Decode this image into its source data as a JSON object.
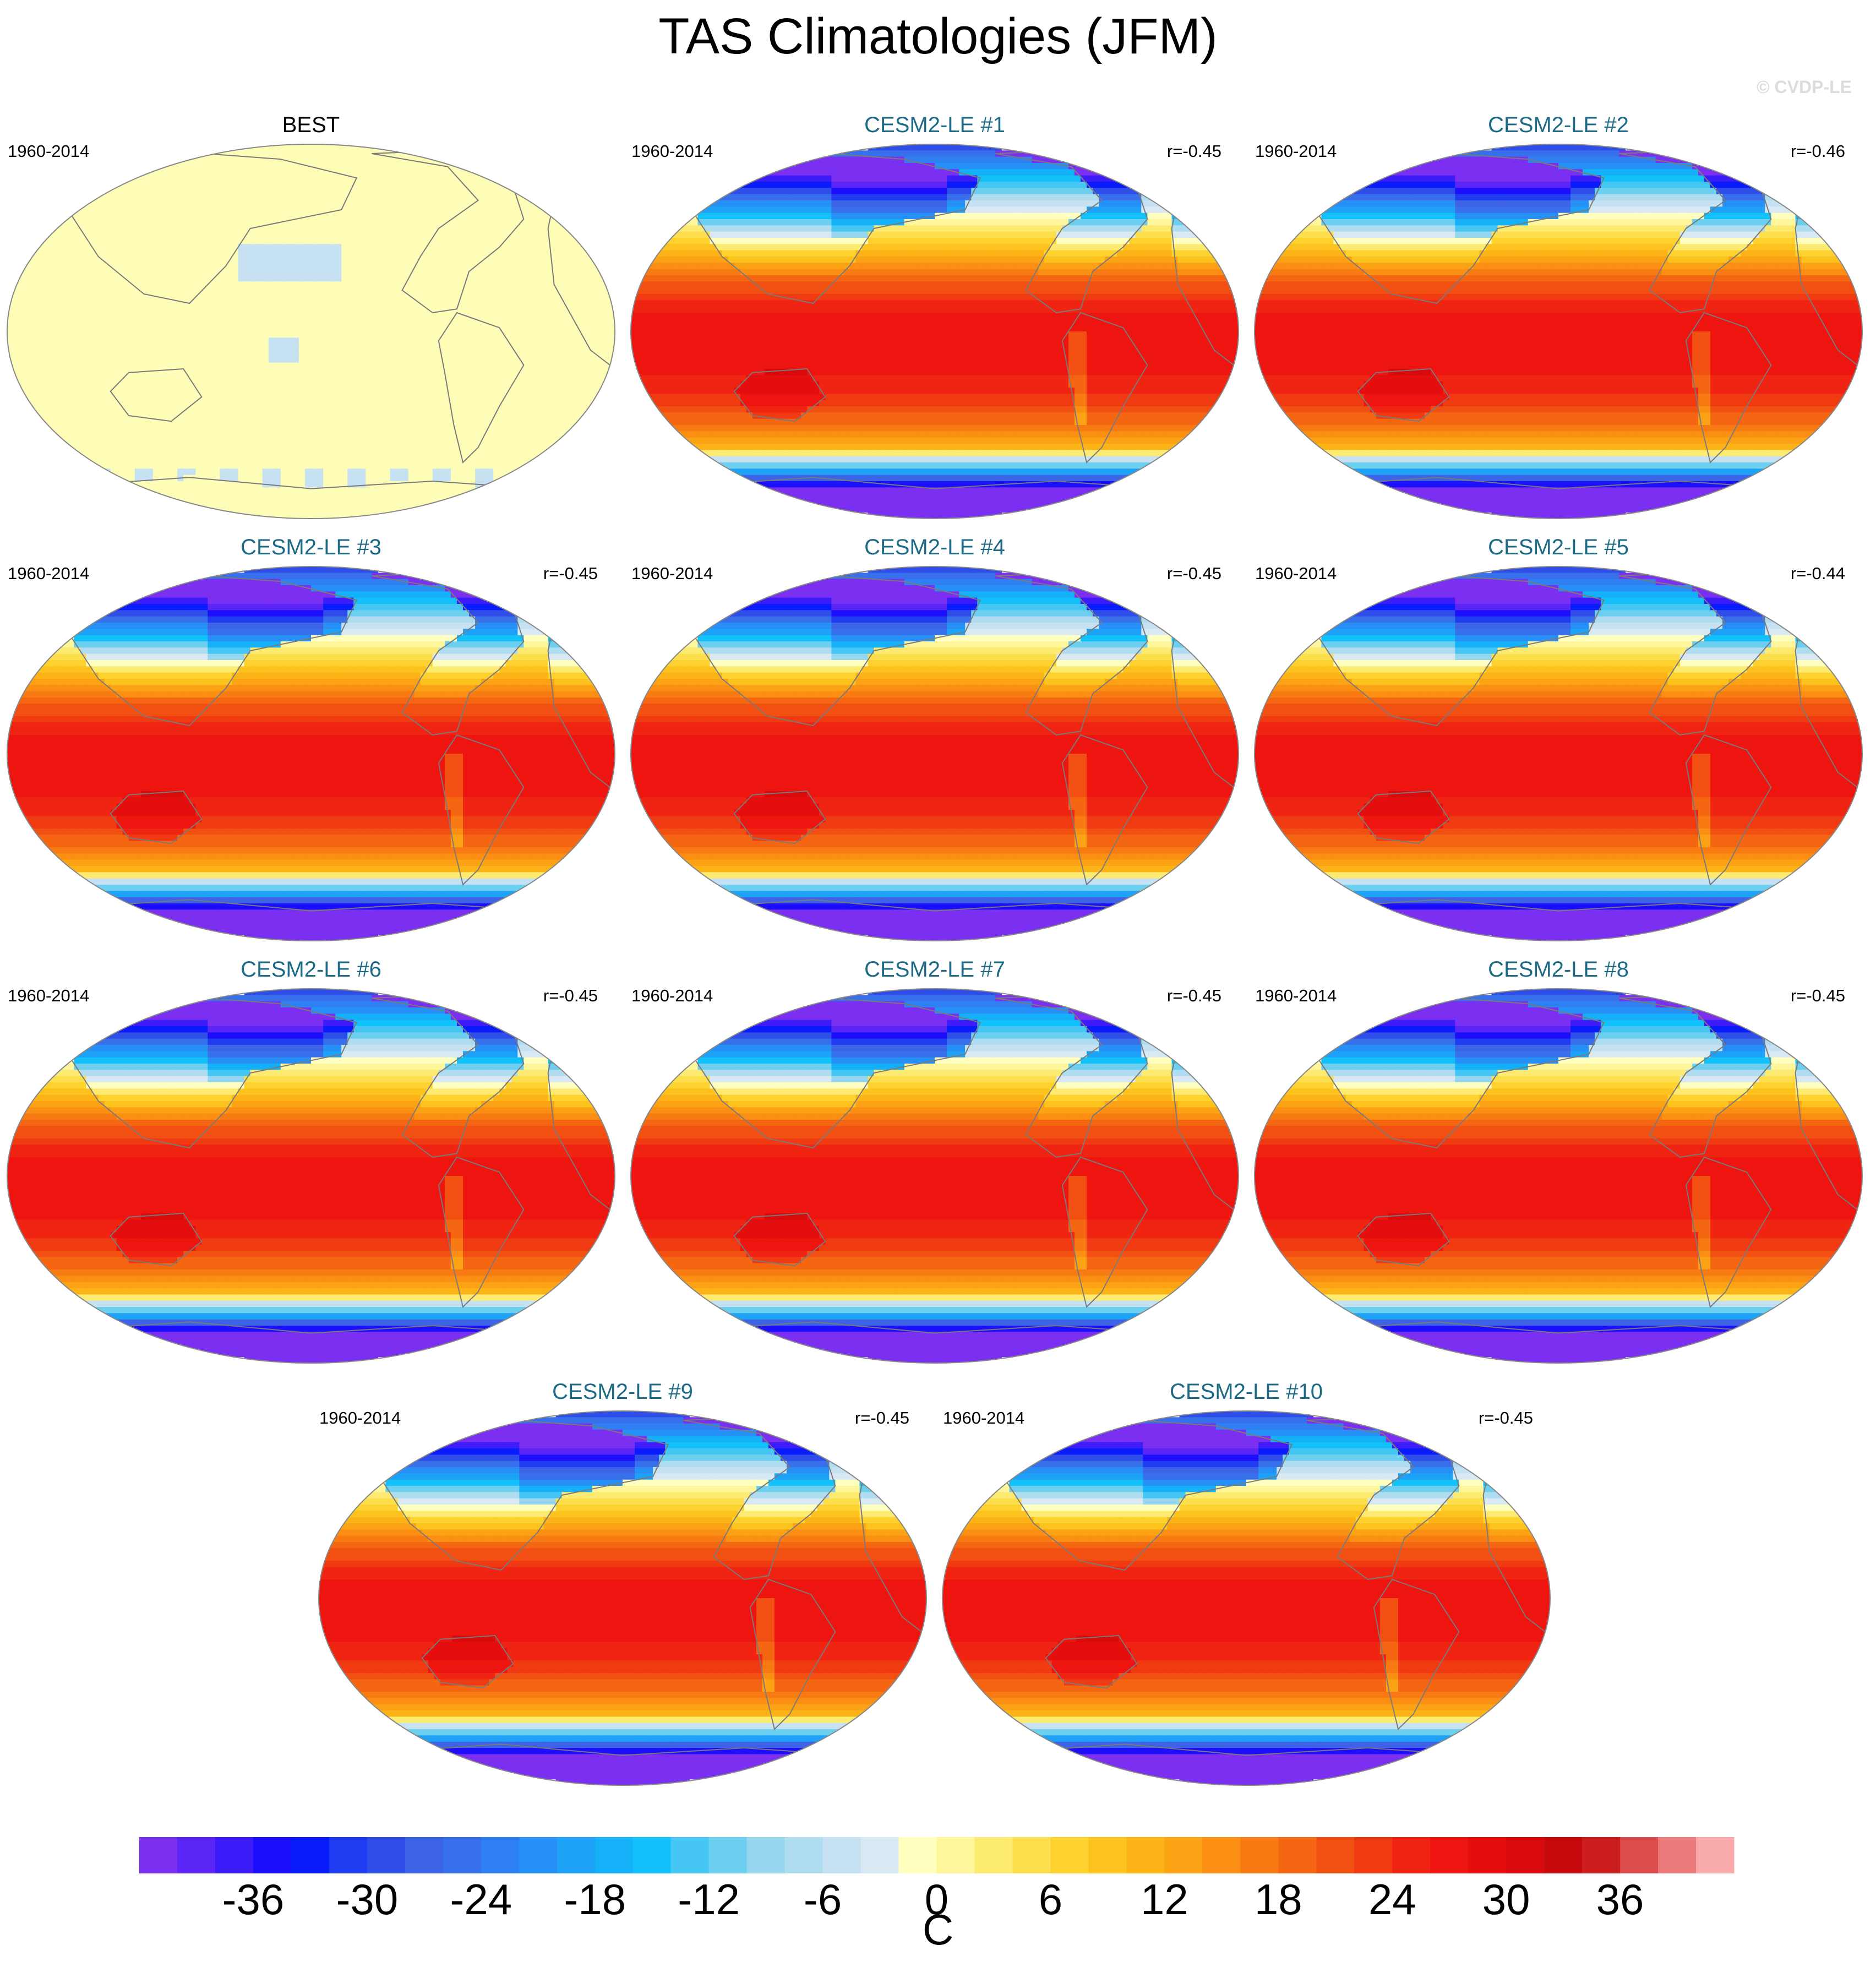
{
  "chart_data": {
    "type": "heatmap",
    "title": "TAS Climatologies (JFM)",
    "watermark": "© CVDP-LE",
    "units": "C",
    "colorbar": {
      "ticks": [
        -36,
        -30,
        -24,
        -18,
        -12,
        -6,
        0,
        6,
        12,
        18,
        24,
        30,
        36
      ],
      "range": [
        -42,
        42
      ],
      "levels": 42,
      "colors": [
        "#7b2ff0",
        "#5b25f5",
        "#3d1cfa",
        "#1c0ffc",
        "#0a1cfb",
        "#1f3cf0",
        "#2f4de8",
        "#3d64e6",
        "#3770ea",
        "#2f80f2",
        "#2690f6",
        "#1ea2f8",
        "#14b0f8",
        "#12c0fa",
        "#46c6f2",
        "#6ccff0",
        "#96d6ef",
        "#b0dcf0",
        "#c6e2f2",
        "#d8e9f4",
        "#ffffc0",
        "#fff59a",
        "#fdea70",
        "#fddf4d",
        "#fdd12e",
        "#fcc21d",
        "#fbb317",
        "#fba215",
        "#fa8f13",
        "#f87a12",
        "#f56612",
        "#f24f12",
        "#f03a12",
        "#f02412",
        "#ee1410",
        "#e40e0e",
        "#d80a0c",
        "#c80a0c",
        "#cc1e1e",
        "#dd4c4c",
        "#ec7a7a",
        "#f8aaaa"
      ]
    },
    "panels": [
      {
        "title": "BEST",
        "period": "1960-2014",
        "r": "",
        "observed": true
      },
      {
        "title": "CESM2-LE #1",
        "period": "1960-2014",
        "r": "r=-0.45"
      },
      {
        "title": "CESM2-LE #2",
        "period": "1960-2014",
        "r": "r=-0.46"
      },
      {
        "title": "CESM2-LE #3",
        "period": "1960-2014",
        "r": "r=-0.45"
      },
      {
        "title": "CESM2-LE #4",
        "period": "1960-2014",
        "r": "r=-0.45"
      },
      {
        "title": "CESM2-LE #5",
        "period": "1960-2014",
        "r": "r=-0.44"
      },
      {
        "title": "CESM2-LE #6",
        "period": "1960-2014",
        "r": "r=-0.45"
      },
      {
        "title": "CESM2-LE #7",
        "period": "1960-2014",
        "r": "r=-0.45"
      },
      {
        "title": "CESM2-LE #8",
        "period": "1960-2014",
        "r": "r=-0.45"
      },
      {
        "title": "CESM2-LE #9",
        "period": "1960-2014",
        "r": "r=-0.45"
      },
      {
        "title": "CESM2-LE #10",
        "period": "1960-2014",
        "r": "r=-0.45"
      }
    ],
    "title_colors": {
      "observed": "#000000",
      "model": "#1c6a85"
    }
  }
}
